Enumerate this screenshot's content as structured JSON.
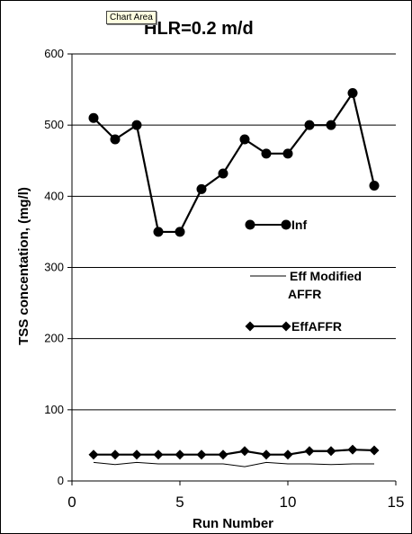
{
  "tooltip": "Chart Area",
  "chart_data": {
    "type": "line",
    "title": "HLR=0.2 m/d",
    "xlabel": "Run Number",
    "ylabel": "TSS  concentation, (mg/l)",
    "xlim": [
      0,
      15
    ],
    "ylim": [
      0,
      600
    ],
    "x_ticks": [
      "0",
      "5",
      "10",
      "15"
    ],
    "y_ticks": [
      "0",
      "100",
      "200",
      "300",
      "400",
      "500",
      "600"
    ],
    "grid": "horizontal major",
    "legend_position": "right",
    "x": [
      1,
      2,
      3,
      4,
      5,
      6,
      7,
      8,
      9,
      10,
      11,
      12,
      13,
      14
    ],
    "series": [
      {
        "name": "Inf",
        "marker": "circle",
        "color": "#000000",
        "values": [
          510,
          480,
          500,
          350,
          350,
          410,
          432,
          480,
          460,
          460,
          500,
          500,
          545,
          415
        ]
      },
      {
        "name": "Eff Modified AFFR",
        "marker": "none",
        "color": "#000000",
        "values": [
          26,
          23,
          26,
          24,
          24,
          24,
          24,
          20,
          26,
          24,
          24,
          23,
          24,
          24
        ]
      },
      {
        "name": "EffAFFR",
        "marker": "diamond",
        "color": "#000000",
        "values": [
          37,
          37,
          37,
          37,
          37,
          37,
          37,
          42,
          37,
          37,
          42,
          42,
          44,
          43
        ]
      }
    ]
  }
}
